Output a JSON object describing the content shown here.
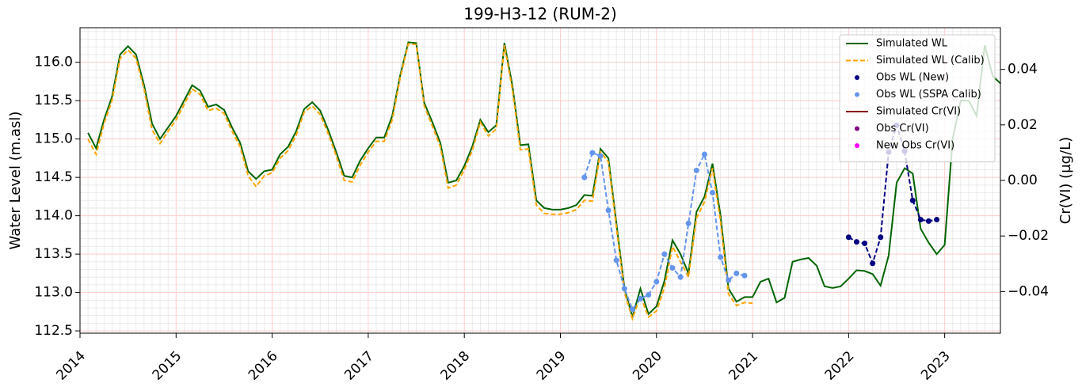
{
  "chart_data": {
    "type": "line",
    "title": "199-H3-12 (RUM-2)",
    "y_label": "Water Level (m.asl)",
    "y2_label": "Cr(VI) (µg/L)",
    "xlim": [
      2014,
      2023.58
    ],
    "xticks": [
      2014,
      2015,
      2016,
      2017,
      2018,
      2019,
      2020,
      2021,
      2022,
      2023
    ],
    "ylim": [
      112.47,
      116.45
    ],
    "yticks": [
      {
        "value": 112.5,
        "label": "112.5"
      },
      {
        "value": 113,
        "label": "113.0"
      },
      113.5,
      {
        "value": 114,
        "label": "114.0"
      },
      114.5,
      {
        "value": 115,
        "label": "115.0"
      },
      115.5,
      {
        "value": 116,
        "label": "116.0"
      }
    ],
    "y2lim": [
      -0.055,
      0.055
    ],
    "y2ticks": [
      {
        "value": -0.04,
        "label": "−0.04"
      },
      {
        "value": -0.02,
        "label": "−0.02"
      },
      {
        "value": 0,
        "label": "0.00"
      },
      0.02,
      0.04
    ],
    "grid": true,
    "minor_grid": true,
    "legend": "upper right",
    "series": [
      {
        "name": "Simulated WL",
        "color": "#006400",
        "style": "solid",
        "x": [
          2014.083,
          2014.167,
          2014.25,
          2014.333,
          2014.417,
          2014.5,
          2014.583,
          2014.667,
          2014.75,
          2014.833,
          2014.917,
          2015,
          2015.083,
          2015.167,
          2015.25,
          2015.333,
          2015.417,
          2015.5,
          2015.583,
          2015.667,
          2015.75,
          2015.833,
          2015.917,
          2016,
          2016.083,
          2016.167,
          2016.25,
          2016.333,
          2016.417,
          2016.5,
          2016.583,
          2016.667,
          2016.75,
          2016.833,
          2016.917,
          2017,
          2017.083,
          2017.167,
          2017.25,
          2017.333,
          2017.417,
          2017.5,
          2017.583,
          2017.667,
          2017.75,
          2017.833,
          2017.917,
          2018,
          2018.083,
          2018.167,
          2018.25,
          2018.333,
          2018.417,
          2018.5,
          2018.583,
          2018.667,
          2018.75,
          2018.833,
          2018.917,
          2019,
          2019.083,
          2019.167,
          2019.25,
          2019.333,
          2019.417,
          2019.5,
          2019.583,
          2019.667,
          2019.75,
          2019.833,
          2019.917,
          2020,
          2020.083,
          2020.167,
          2020.25,
          2020.333,
          2020.417,
          2020.5,
          2020.583,
          2020.667,
          2020.75,
          2020.833,
          2020.917,
          2021,
          2021.083,
          2021.167,
          2021.25,
          2021.333,
          2021.417,
          2021.5,
          2021.583,
          2021.667,
          2021.75,
          2021.833,
          2021.917,
          2022,
          2022.083,
          2022.167,
          2022.25,
          2022.333,
          2022.417,
          2022.5,
          2022.583,
          2022.667,
          2022.75,
          2022.833,
          2022.917,
          2023,
          2023.083,
          2023.167,
          2023.25,
          2023.333,
          2023.417,
          2023.5,
          2023.583
        ],
        "values": [
          115.08,
          114.88,
          115.25,
          115.55,
          116.1,
          116.21,
          116.1,
          115.7,
          115.2,
          115.0,
          115.15,
          115.3,
          115.5,
          115.7,
          115.63,
          115.42,
          115.45,
          115.38,
          115.15,
          114.95,
          114.58,
          114.48,
          114.58,
          114.6,
          114.8,
          114.9,
          115.1,
          115.39,
          115.48,
          115.37,
          115.12,
          114.83,
          114.52,
          114.5,
          114.72,
          114.88,
          115.02,
          115.02,
          115.3,
          115.83,
          116.26,
          116.25,
          115.47,
          115.22,
          114.95,
          114.43,
          114.46,
          114.65,
          114.9,
          115.25,
          115.09,
          115.18,
          116.25,
          115.7,
          114.92,
          114.93,
          114.2,
          114.1,
          114.08,
          114.08,
          114.1,
          114.14,
          114.27,
          114.26,
          114.87,
          114.75,
          113.9,
          113.05,
          112.68,
          113.05,
          112.72,
          112.82,
          113.15,
          113.68,
          113.5,
          113.25,
          114.05,
          114.25,
          114.68,
          114.0,
          113.05,
          112.88,
          112.94,
          112.94,
          113.14,
          113.18,
          112.87,
          112.93,
          113.4,
          113.43,
          113.45,
          113.35,
          113.08,
          113.06,
          113.08,
          113.18,
          113.29,
          113.28,
          113.24,
          113.09,
          113.48,
          114.43,
          114.62,
          114.55,
          113.83,
          113.65,
          113.5,
          113.62,
          115.0,
          115.5,
          115.5,
          115.3,
          116.22,
          115.82,
          115.72
        ]
      },
      {
        "name": "Simulated WL (Calib)",
        "color": "#ffa500",
        "style": "dashed",
        "x": [
          2014.083,
          2014.167,
          2014.25,
          2014.333,
          2014.417,
          2014.5,
          2014.583,
          2014.667,
          2014.75,
          2014.833,
          2014.917,
          2015,
          2015.083,
          2015.167,
          2015.25,
          2015.333,
          2015.417,
          2015.5,
          2015.583,
          2015.667,
          2015.75,
          2015.833,
          2015.917,
          2016,
          2016.083,
          2016.167,
          2016.25,
          2016.333,
          2016.417,
          2016.5,
          2016.583,
          2016.667,
          2016.75,
          2016.833,
          2016.917,
          2017,
          2017.083,
          2017.167,
          2017.25,
          2017.333,
          2017.417,
          2017.5,
          2017.583,
          2017.667,
          2017.75,
          2017.833,
          2017.917,
          2018,
          2018.083,
          2018.167,
          2018.25,
          2018.333,
          2018.417,
          2018.5,
          2018.583,
          2018.667,
          2018.75,
          2018.833,
          2018.917,
          2019,
          2019.083,
          2019.167,
          2019.25,
          2019.333,
          2019.417,
          2019.5,
          2019.583,
          2019.667,
          2019.75,
          2019.833,
          2019.917,
          2020,
          2020.083,
          2020.167,
          2020.25,
          2020.333,
          2020.417,
          2020.5,
          2020.583,
          2020.667,
          2020.75,
          2020.833,
          2020.917,
          2021
        ],
        "values": [
          115.0,
          114.8,
          115.2,
          115.5,
          116.05,
          116.16,
          116.05,
          115.65,
          115.12,
          114.94,
          115.1,
          115.25,
          115.45,
          115.65,
          115.58,
          115.37,
          115.4,
          115.33,
          115.1,
          114.9,
          114.52,
          114.38,
          114.52,
          114.56,
          114.75,
          114.85,
          115.05,
          115.35,
          115.43,
          115.32,
          115.07,
          114.78,
          114.46,
          114.44,
          114.66,
          114.83,
          114.97,
          114.97,
          115.25,
          115.8,
          116.24,
          116.23,
          115.43,
          115.17,
          114.9,
          114.36,
          114.4,
          114.6,
          114.85,
          115.22,
          115.04,
          115.13,
          116.22,
          115.65,
          114.86,
          114.87,
          114.14,
          114.03,
          114.02,
          114.02,
          114.04,
          114.08,
          114.2,
          114.19,
          114.83,
          114.7,
          113.85,
          113.0,
          112.66,
          112.95,
          112.68,
          112.76,
          113.06,
          113.6,
          113.4,
          113.2,
          113.97,
          114.18,
          114.62,
          113.92,
          112.98,
          112.83,
          112.87,
          112.86
        ]
      },
      {
        "name": "Obs WL (New)",
        "color": "#000080",
        "style": "dots-dashed",
        "x": [
          2022,
          2022.083,
          2022.167,
          2022.25,
          2022.333,
          2022.417,
          2022.5,
          2022.583,
          2022.667,
          2022.75,
          2022.833,
          2022.917
        ],
        "values": [
          113.72,
          113.66,
          113.64,
          113.38,
          113.72,
          114.83,
          115.18,
          114.84,
          114.2,
          113.95,
          113.93,
          113.95
        ]
      },
      {
        "name": "Obs WL (SSPA Calib)",
        "color": "#6495ed",
        "style": "dots-dashed",
        "x": [
          2019.25,
          2019.333,
          2019.417,
          2019.5,
          2019.583,
          2019.667,
          2019.75,
          2019.833,
          2019.917,
          2020,
          2020.083,
          2020.167,
          2020.25,
          2020.333,
          2020.417,
          2020.5,
          2020.583,
          2020.667,
          2020.75,
          2020.833,
          2020.917
        ],
        "values": [
          114.5,
          114.82,
          114.78,
          114.07,
          113.42,
          113.05,
          112.78,
          112.92,
          112.97,
          113.14,
          113.5,
          113.32,
          113.2,
          113.9,
          114.59,
          114.8,
          114.3,
          113.46,
          113.16,
          113.25,
          113.22
        ]
      },
      {
        "name": "Simulated Cr(VI)",
        "color": "#8b0000",
        "style": "solid",
        "axis": "y2",
        "x": [],
        "values": []
      },
      {
        "name": "Obs Cr(VI)",
        "color": "#800080",
        "style": "dots",
        "axis": "y2",
        "x": [],
        "values": []
      },
      {
        "name": "New Obs Cr(VI)",
        "color": "#ff00ff",
        "style": "dots",
        "axis": "y2",
        "x": [],
        "values": []
      }
    ]
  }
}
